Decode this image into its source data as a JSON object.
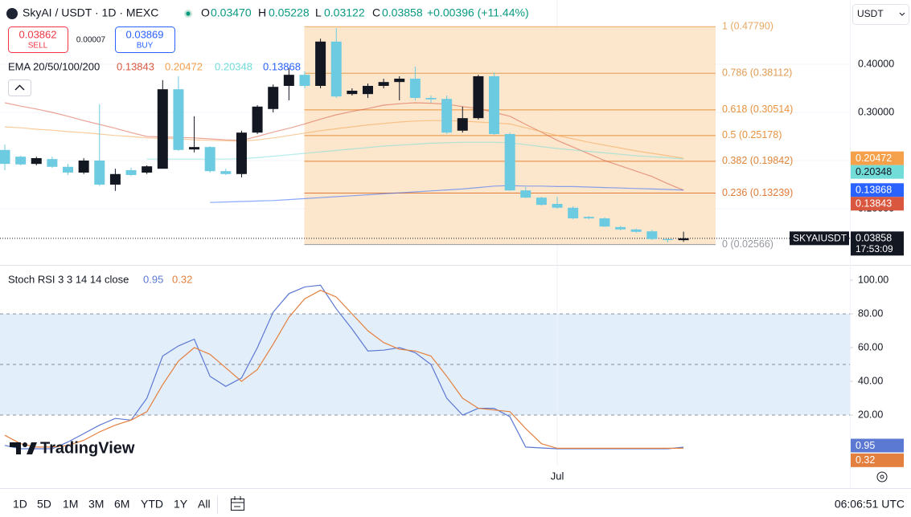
{
  "header": {
    "symbol": "SkyAI / USDT · 1D · MEXC",
    "ohlc": [
      {
        "label": "O",
        "value": "0.03470"
      },
      {
        "label": "H",
        "value": "0.05228"
      },
      {
        "label": "L",
        "value": "0.03122"
      },
      {
        "label": "C",
        "value": "0.03858"
      }
    ],
    "change": "+0.00396 (+11.44%)",
    "sell": {
      "price": "0.03862",
      "label": "SELL"
    },
    "spread": "0.00007",
    "buy": {
      "price": "0.03869",
      "label": "BUY"
    },
    "currency": "USDT"
  },
  "chart_data": [
    {
      "type": "candlestick",
      "categories": [
        null,
        null,
        null,
        null,
        null,
        null,
        null,
        null,
        null,
        null,
        null,
        null,
        null,
        null,
        null,
        null,
        null,
        null,
        null,
        null,
        null,
        null,
        null,
        null,
        null,
        null,
        null,
        null,
        null,
        null,
        null,
        null,
        null,
        null,
        null,
        "Jul",
        null,
        null,
        null,
        null,
        null,
        null,
        null,
        null
      ],
      "open": [
        0.222,
        0.208,
        0.193,
        0.203,
        0.187,
        0.175,
        0.2,
        0.15,
        0.18,
        0.175,
        0.183,
        0.348,
        0.223,
        0.228,
        0.178,
        0.172,
        0.258,
        0.307,
        0.355,
        0.378,
        0.355,
        0.447,
        0.338,
        0.338,
        0.355,
        0.363,
        0.37,
        0.33,
        0.328,
        0.262,
        0.288,
        0.375,
        0.255,
        0.138,
        0.123,
        0.11,
        0.102,
        0.083,
        0.08,
        0.062,
        0.057,
        0.053,
        0.037,
        0.0347
      ],
      "high": [
        0.233,
        0.21,
        0.208,
        0.208,
        0.193,
        0.205,
        0.317,
        0.183,
        0.185,
        0.19,
        0.367,
        0.375,
        0.292,
        0.23,
        0.183,
        0.262,
        0.315,
        0.358,
        0.392,
        0.385,
        0.453,
        0.475,
        0.35,
        0.36,
        0.37,
        0.375,
        0.395,
        0.335,
        0.335,
        0.312,
        0.378,
        0.383,
        0.258,
        0.145,
        0.125,
        0.125,
        0.105,
        0.085,
        0.082,
        0.064,
        0.059,
        0.056,
        0.038,
        0.05228
      ],
      "low": [
        0.18,
        0.19,
        0.19,
        0.185,
        0.17,
        0.172,
        0.147,
        0.137,
        0.168,
        0.172,
        0.183,
        0.22,
        0.217,
        0.175,
        0.17,
        0.165,
        0.255,
        0.3,
        0.325,
        0.35,
        0.35,
        0.33,
        0.335,
        0.33,
        0.35,
        0.325,
        0.325,
        0.32,
        0.255,
        0.258,
        0.285,
        0.253,
        0.137,
        0.122,
        0.106,
        0.1,
        0.078,
        0.078,
        0.062,
        0.055,
        0.05,
        0.035,
        0.03,
        0.03122
      ],
      "close": [
        0.193,
        0.192,
        0.205,
        0.187,
        0.175,
        0.2,
        0.15,
        0.172,
        0.17,
        0.188,
        0.348,
        0.222,
        0.228,
        0.178,
        0.172,
        0.258,
        0.312,
        0.353,
        0.378,
        0.355,
        0.447,
        0.333,
        0.345,
        0.355,
        0.363,
        0.37,
        0.33,
        0.327,
        0.258,
        0.288,
        0.375,
        0.255,
        0.138,
        0.123,
        0.108,
        0.102,
        0.08,
        0.08,
        0.063,
        0.057,
        0.052,
        0.037,
        0.035,
        0.03858
      ],
      "up_color": "#131722",
      "down_color": "#6ccbe0",
      "ylim": [
        -0.0167,
        0.5333
      ],
      "yticks": [
        {
          "value": 0.1,
          "label": "0.10000"
        },
        {
          "value": 0.2,
          "label": "0.20000"
        },
        {
          "value": 0.3,
          "label": "0.30000"
        },
        {
          "value": 0.4,
          "label": "0.40000"
        }
      ],
      "grid": true,
      "price_tag": {
        "symbol": "SKYAIUSDT",
        "countdown": "17:53:09"
      },
      "ema": {
        "title": "EMA 20/50/100/200",
        "series": [
          {
            "color": "#d9573f",
            "values": [
              0.32,
              0.313,
              0.307,
              0.3,
              0.292,
              0.283,
              0.275,
              0.267,
              0.258,
              0.25,
              0.249,
              0.248,
              0.247,
              0.245,
              0.243,
              0.242,
              0.25,
              0.259,
              0.267,
              0.276,
              0.286,
              0.295,
              0.302,
              0.308,
              0.315,
              0.318,
              0.32,
              0.319,
              0.317,
              0.312,
              0.308,
              0.3,
              0.292,
              0.275,
              0.259,
              0.242,
              0.228,
              0.214,
              0.2,
              0.189,
              0.178,
              0.167,
              0.152,
              0.13843
            ]
          },
          {
            "color": "#f5a04a",
            "values": [
              0.27,
              0.268,
              0.265,
              0.263,
              0.26,
              0.258,
              0.255,
              0.252,
              0.25,
              0.247,
              0.246,
              0.245,
              0.243,
              0.242,
              0.241,
              0.24,
              0.243,
              0.247,
              0.252,
              0.257,
              0.262,
              0.266,
              0.27,
              0.274,
              0.277,
              0.28,
              0.282,
              0.283,
              0.283,
              0.282,
              0.28,
              0.278,
              0.276,
              0.268,
              0.26,
              0.252,
              0.245,
              0.238,
              0.232,
              0.226,
              0.22,
              0.215,
              0.21,
              0.20472
            ]
          },
          {
            "color": "#72dcd8",
            "values": [
              null,
              null,
              null,
              null,
              null,
              null,
              null,
              null,
              null,
              0.203,
              0.203,
              0.203,
              0.203,
              0.203,
              0.203,
              0.204,
              0.206,
              0.209,
              0.212,
              0.215,
              0.218,
              0.221,
              0.224,
              0.227,
              0.23,
              0.232,
              0.234,
              0.236,
              0.237,
              0.238,
              0.238,
              0.238,
              0.237,
              0.233,
              0.229,
              0.225,
              0.222,
              0.219,
              0.216,
              0.213,
              0.21,
              0.208,
              0.206,
              0.20348
            ]
          },
          {
            "color": "#2962ff",
            "values": [
              null,
              null,
              null,
              null,
              null,
              null,
              null,
              null,
              null,
              null,
              null,
              null,
              null,
              0.113,
              0.114,
              0.115,
              0.116,
              0.117,
              0.119,
              0.121,
              0.123,
              0.125,
              0.127,
              0.129,
              0.131,
              0.133,
              0.135,
              0.137,
              0.139,
              0.141,
              0.144,
              0.147,
              0.148,
              0.147,
              0.147,
              0.146,
              0.146,
              0.145,
              0.144,
              0.143,
              0.142,
              0.141,
              0.14,
              0.13868
            ]
          }
        ]
      },
      "fib": {
        "levels": [
          {
            "value": 0.4779,
            "label": "1 (0.47790)",
            "color": "#e8a862"
          },
          {
            "value": 0.38112,
            "label": "0.786 (0.38112)",
            "color": "#e09b52"
          },
          {
            "value": 0.30514,
            "label": "0.618 (0.30514)",
            "color": "#e8923e"
          },
          {
            "value": 0.25178,
            "label": "0.5 (0.25178)",
            "color": "#e8923e"
          },
          {
            "value": 0.19842,
            "label": "0.382 (0.19842)",
            "color": "#e0863a"
          },
          {
            "value": 0.13239,
            "label": "0.236 (0.13239)",
            "color": "#e07b3a"
          },
          {
            "value": 0.02566,
            "label": "0 (0.02566)",
            "color": "#9598a1"
          }
        ],
        "fill": "#fbe3c4"
      }
    },
    {
      "type": "line",
      "title": "Stoch RSI 3 3 14 14 close",
      "series": [
        {
          "color": "#5b78d3",
          "values": [
            2,
            0,
            0,
            0,
            4,
            9,
            14,
            18,
            17,
            30,
            55,
            61,
            65,
            43,
            37,
            42,
            60,
            81,
            92,
            96,
            97,
            83,
            71,
            58,
            58.5,
            60,
            57,
            50,
            30,
            20,
            24,
            24,
            19,
            1,
            0.5,
            0,
            0,
            0,
            0,
            0,
            0,
            0,
            0,
            0.95
          ]
        },
        {
          "color": "#e4803f",
          "values": [
            8,
            3,
            1,
            1,
            2,
            5,
            10,
            14,
            17,
            22,
            38,
            52,
            60,
            56,
            48,
            40,
            47,
            62,
            78,
            89,
            94,
            90,
            80,
            70,
            63,
            59,
            58,
            55,
            43,
            30,
            24,
            23,
            22,
            12,
            3,
            0.3,
            0.3,
            0.3,
            0.3,
            0.3,
            0.3,
            0.3,
            0.3,
            0.32
          ]
        }
      ],
      "ylim": [
        -10,
        109.05
      ],
      "yticks": [
        {
          "value": 20,
          "label": "20.00"
        },
        {
          "value": 40,
          "label": "40.00"
        },
        {
          "value": 60,
          "label": "60.00"
        },
        {
          "value": 80,
          "label": "80.00"
        },
        {
          "value": 100,
          "label": "100.00"
        }
      ],
      "levels": [
        20,
        50,
        80
      ],
      "band": [
        20,
        80
      ],
      "band_color": "#e3eefb"
    }
  ],
  "branding": "TradingView",
  "footer": {
    "ranges": [
      "1D",
      "5D",
      "1M",
      "3M",
      "6M",
      "YTD",
      "1Y",
      "All"
    ],
    "time": "06:06:51 UTC"
  }
}
